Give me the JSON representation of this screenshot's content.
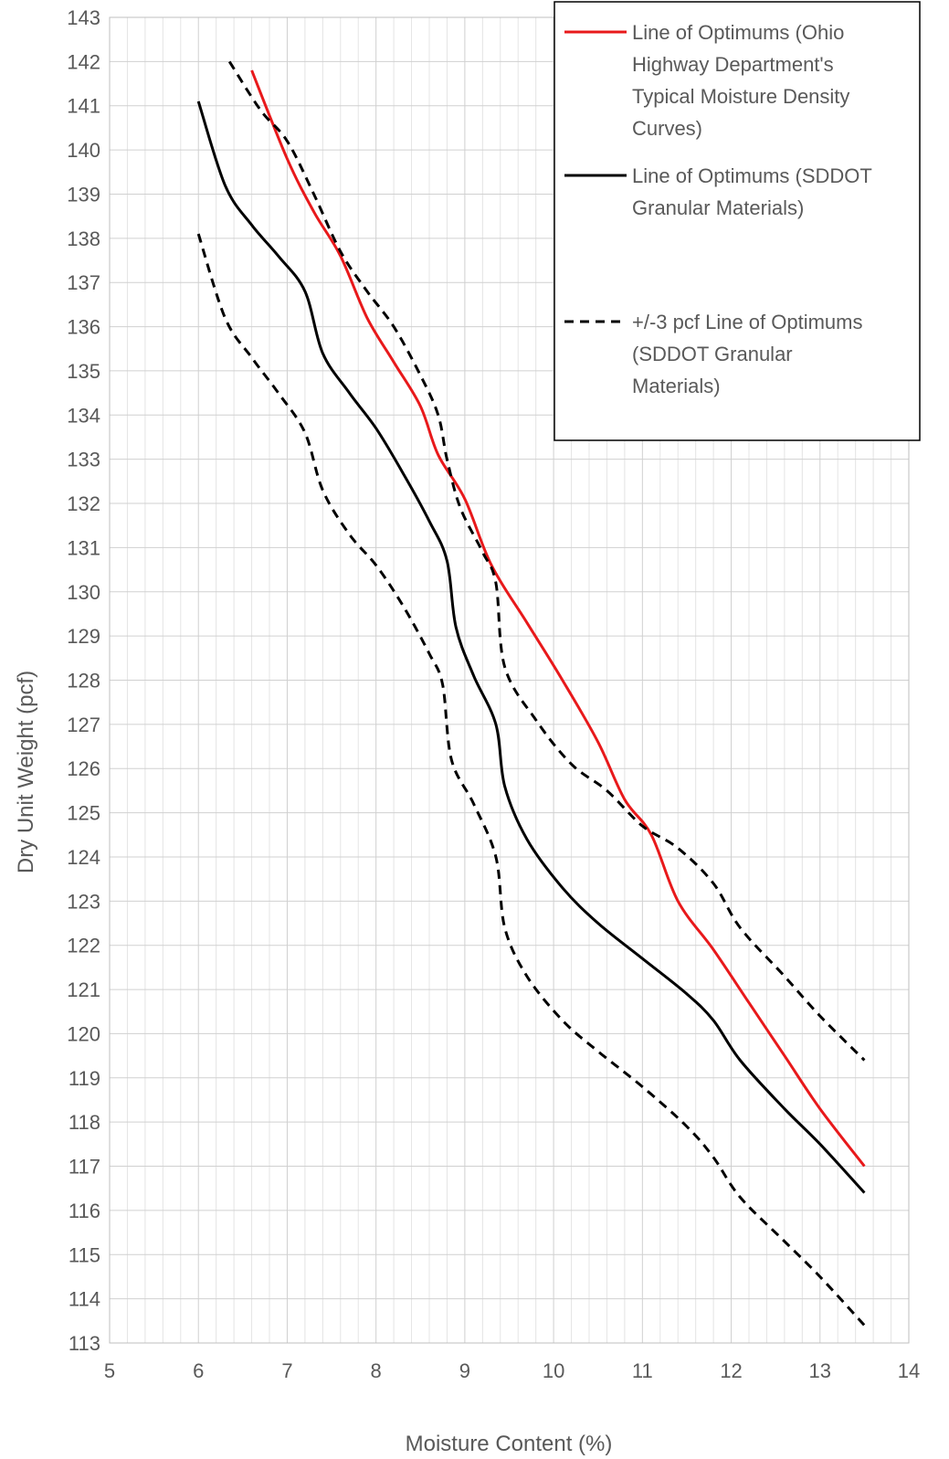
{
  "chart_data": {
    "type": "line",
    "xlabel": "Moisture Content (%)",
    "ylabel": "Dry Unit Weight (pcf)",
    "xlim": [
      5,
      14
    ],
    "ylim": [
      113,
      143
    ],
    "x_ticks": [
      "5",
      "6",
      "7",
      "8",
      "9",
      "10",
      "11",
      "12",
      "13",
      "14"
    ],
    "y_ticks": [
      "113",
      "114",
      "115",
      "116",
      "117",
      "118",
      "119",
      "120",
      "121",
      "122",
      "123",
      "124",
      "125",
      "126",
      "127",
      "128",
      "129",
      "130",
      "131",
      "132",
      "133",
      "134",
      "135",
      "136",
      "137",
      "138",
      "139",
      "140",
      "141",
      "142",
      "143"
    ],
    "x_minor_step": 0.2,
    "grid": true,
    "legend_position": "top-right",
    "series": [
      {
        "name": "Line of Optimums (Ohio Highway Department's Typical Moisture Density Curves)",
        "color": "#e8191b",
        "style": "solid",
        "points": [
          [
            6.6,
            141.8
          ],
          [
            7.0,
            139.8
          ],
          [
            7.3,
            138.6
          ],
          [
            7.6,
            137.6
          ],
          [
            7.9,
            136.2
          ],
          [
            8.2,
            135.2
          ],
          [
            8.5,
            134.2
          ],
          [
            8.7,
            133.1
          ],
          [
            9.0,
            132.1
          ],
          [
            9.3,
            130.6
          ],
          [
            9.7,
            129.3
          ],
          [
            10.1,
            128.0
          ],
          [
            10.5,
            126.6
          ],
          [
            10.8,
            125.3
          ],
          [
            11.1,
            124.5
          ],
          [
            11.4,
            123.0
          ],
          [
            11.8,
            121.9
          ],
          [
            12.2,
            120.7
          ],
          [
            12.6,
            119.5
          ],
          [
            13.0,
            118.3
          ],
          [
            13.5,
            117.0
          ]
        ]
      },
      {
        "name": "Line of Optimums (SDDOT Granular Materials)",
        "color": "#000000",
        "style": "solid",
        "points": [
          [
            6.0,
            141.1
          ],
          [
            6.3,
            139.2
          ],
          [
            6.6,
            138.3
          ],
          [
            6.9,
            137.6
          ],
          [
            7.2,
            136.8
          ],
          [
            7.4,
            135.4
          ],
          [
            7.7,
            134.5
          ],
          [
            8.0,
            133.7
          ],
          [
            8.3,
            132.7
          ],
          [
            8.6,
            131.6
          ],
          [
            8.8,
            130.7
          ],
          [
            8.9,
            129.2
          ],
          [
            9.1,
            128.1
          ],
          [
            9.35,
            127.0
          ],
          [
            9.45,
            125.6
          ],
          [
            9.7,
            124.4
          ],
          [
            10.1,
            123.3
          ],
          [
            10.5,
            122.5
          ],
          [
            11.0,
            121.7
          ],
          [
            11.5,
            120.9
          ],
          [
            11.8,
            120.3
          ],
          [
            12.1,
            119.4
          ],
          [
            12.6,
            118.3
          ],
          [
            13.0,
            117.5
          ],
          [
            13.5,
            116.4
          ]
        ]
      },
      {
        "name": "+/-3 pcf Line of Optimums (SDDOT Granular Materials)",
        "color": "#000000",
        "style": "dashed",
        "points": [
          [
            6.35,
            142.0
          ],
          [
            6.7,
            140.9
          ],
          [
            7.0,
            140.2
          ],
          [
            7.3,
            139.0
          ],
          [
            7.6,
            137.7
          ],
          [
            7.9,
            136.8
          ],
          [
            8.2,
            136.0
          ],
          [
            8.5,
            134.9
          ],
          [
            8.7,
            134.0
          ],
          [
            8.8,
            133.0
          ],
          [
            8.95,
            131.9
          ],
          [
            9.2,
            130.9
          ],
          [
            9.35,
            130.2
          ],
          [
            9.45,
            128.3
          ],
          [
            9.8,
            127.1
          ],
          [
            10.2,
            126.1
          ],
          [
            10.6,
            125.5
          ],
          [
            11.0,
            124.7
          ],
          [
            11.4,
            124.2
          ],
          [
            11.8,
            123.4
          ],
          [
            12.1,
            122.4
          ],
          [
            12.6,
            121.3
          ],
          [
            13.0,
            120.4
          ],
          [
            13.5,
            119.4
          ]
        ]
      },
      {
        "name": "",
        "color": "#000000",
        "style": "dashed",
        "points": [
          [
            6.0,
            138.1
          ],
          [
            6.3,
            136.2
          ],
          [
            6.6,
            135.3
          ],
          [
            6.9,
            134.5
          ],
          [
            7.2,
            133.6
          ],
          [
            7.4,
            132.3
          ],
          [
            7.7,
            131.3
          ],
          [
            8.0,
            130.6
          ],
          [
            8.3,
            129.7
          ],
          [
            8.6,
            128.6
          ],
          [
            8.75,
            127.9
          ],
          [
            8.85,
            126.2
          ],
          [
            9.1,
            125.2
          ],
          [
            9.35,
            124.0
          ],
          [
            9.45,
            122.4
          ],
          [
            9.7,
            121.3
          ],
          [
            10.1,
            120.3
          ],
          [
            10.5,
            119.6
          ],
          [
            11.0,
            118.8
          ],
          [
            11.5,
            117.9
          ],
          [
            11.8,
            117.2
          ],
          [
            12.1,
            116.3
          ],
          [
            12.6,
            115.3
          ],
          [
            13.0,
            114.5
          ],
          [
            13.5,
            113.4
          ]
        ]
      }
    ]
  }
}
